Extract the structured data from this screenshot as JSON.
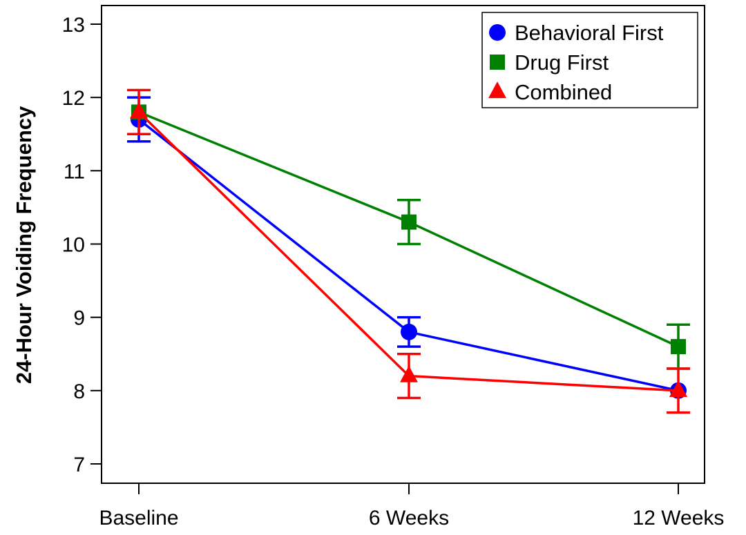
{
  "chart_data": {
    "type": "line",
    "title": "",
    "xlabel": "",
    "ylabel": "24-Hour Voiding Frequency",
    "categories": [
      "Baseline",
      "6 Weeks",
      "12 Weeks"
    ],
    "ylim": [
      7,
      13
    ],
    "yticks": [
      7,
      8,
      9,
      10,
      11,
      12,
      13
    ],
    "grid": false,
    "legend_position": "top-right",
    "series": [
      {
        "name": "Behavioral First",
        "marker": "circle",
        "color": "#0000ff",
        "values": [
          11.7,
          8.8,
          8.0
        ],
        "err_low": [
          11.4,
          8.6,
          8.0
        ],
        "err_high": [
          12.0,
          9.0,
          8.0
        ]
      },
      {
        "name": "Drug First",
        "marker": "square",
        "color": "#008000",
        "values": [
          11.8,
          10.3,
          8.6
        ],
        "err_low": [
          11.8,
          10.0,
          8.3
        ],
        "err_high": [
          11.8,
          10.6,
          8.9
        ]
      },
      {
        "name": "Combined",
        "marker": "triangle",
        "color": "#ff0000",
        "values": [
          11.8,
          8.2,
          8.0
        ],
        "err_low": [
          11.5,
          7.9,
          7.7
        ],
        "err_high": [
          12.1,
          8.5,
          8.3
        ]
      }
    ]
  }
}
